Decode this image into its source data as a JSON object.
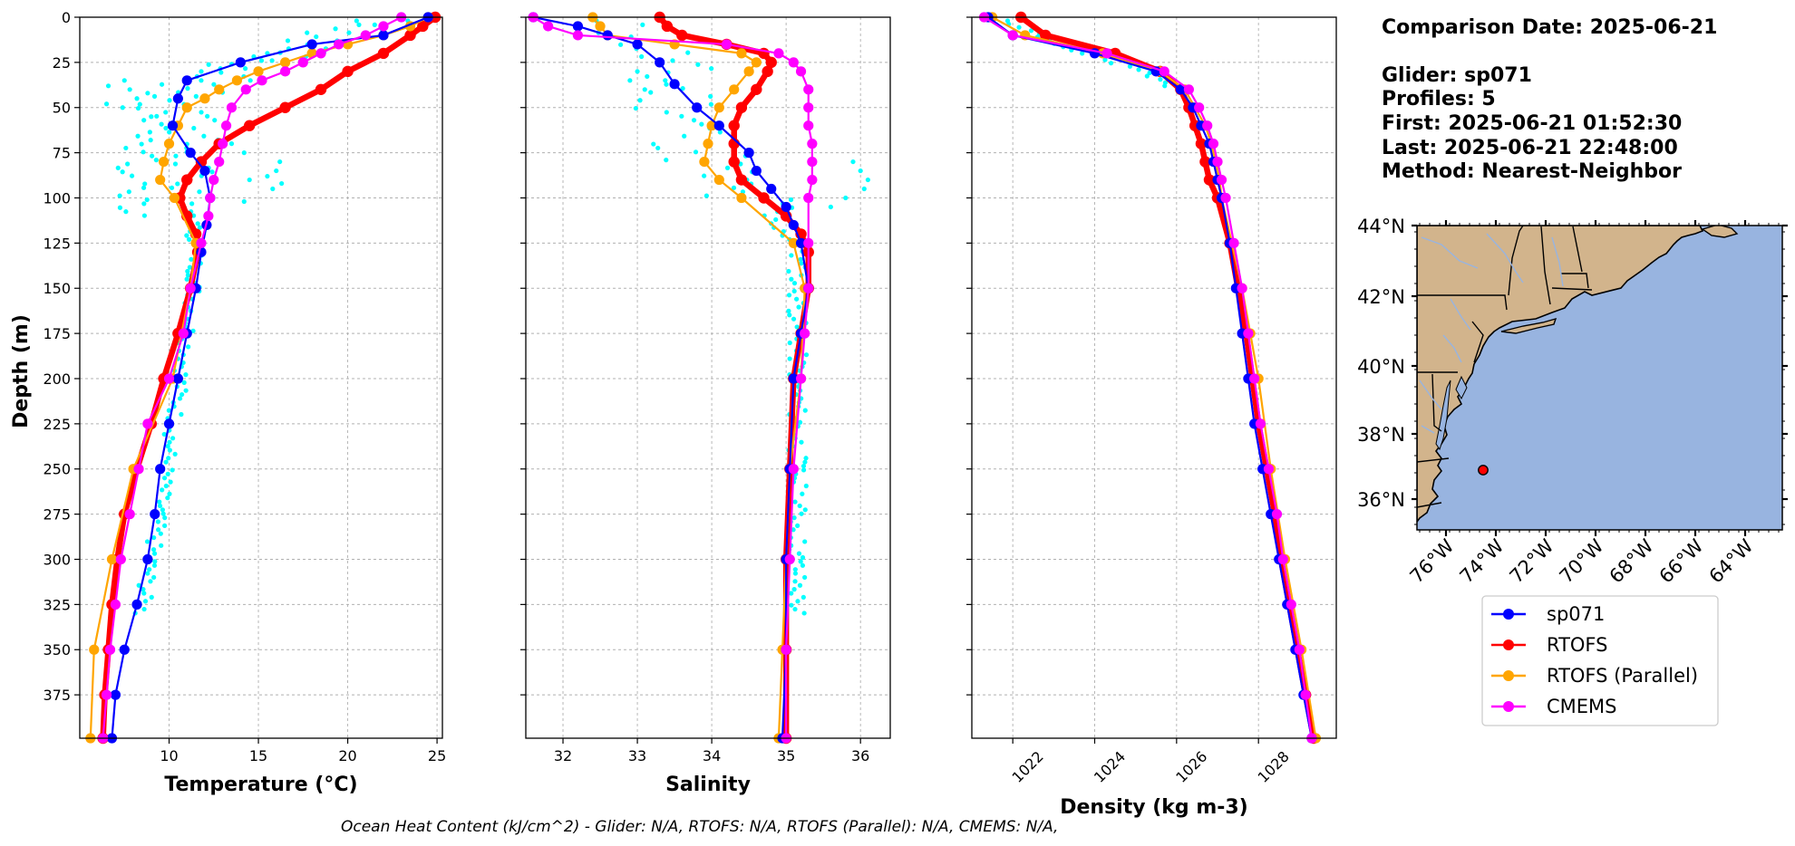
{
  "chart_data": [
    {
      "type": "line",
      "xlabel": "Temperature (°C)",
      "ylabel": "Depth (m)",
      "xlim": [
        5,
        25.3
      ],
      "ylim": [
        399,
        0
      ],
      "y_inverted": true,
      "grid": true,
      "xticks": [
        10,
        15,
        20,
        25
      ],
      "yticks": [
        0,
        25,
        50,
        75,
        100,
        125,
        150,
        175,
        200,
        225,
        250,
        275,
        300,
        325,
        350,
        375
      ],
      "series": [
        {
          "name": "sp071",
          "color": "#0000ff",
          "depth": [
            0,
            10,
            15,
            25,
            35,
            45,
            60,
            75,
            85,
            100,
            115,
            130,
            150,
            175,
            200,
            225,
            250,
            275,
            300,
            325,
            350,
            375,
            399
          ],
          "values": [
            24.5,
            22,
            18,
            14,
            11,
            10.5,
            10.2,
            11.2,
            12,
            12.3,
            12.1,
            11.8,
            11.5,
            11,
            10.5,
            10,
            9.5,
            9.2,
            8.8,
            8.2,
            7.5,
            7,
            6.8
          ]
        },
        {
          "name": "RTOFS",
          "color": "#ff0000",
          "depth": [
            0,
            5,
            10,
            20,
            30,
            40,
            50,
            60,
            70,
            80,
            90,
            100,
            110,
            120,
            130,
            150,
            175,
            200,
            225,
            250,
            275,
            300,
            325,
            350,
            375,
            399
          ],
          "values": [
            24.9,
            24.2,
            23.5,
            22,
            20,
            18.5,
            16.5,
            14.5,
            12.8,
            11.8,
            11,
            10.6,
            11,
            11.5,
            11.6,
            11.2,
            10.5,
            9.7,
            9,
            8.2,
            7.5,
            7.1,
            6.8,
            6.6,
            6.4,
            6.3
          ]
        },
        {
          "name": "RTOFS (Parallel)",
          "color": "#ffa500",
          "depth": [
            0,
            5,
            10,
            15,
            20,
            25,
            30,
            35,
            40,
            45,
            50,
            60,
            70,
            80,
            90,
            100,
            125,
            150,
            200,
            250,
            300,
            350,
            399
          ],
          "values": [
            24.5,
            23.5,
            22,
            20,
            18,
            16.5,
            15,
            13.8,
            12.8,
            12,
            11,
            10.5,
            10,
            9.7,
            9.5,
            10.3,
            11.5,
            11.2,
            10.2,
            8,
            6.8,
            5.8,
            5.6
          ]
        },
        {
          "name": "CMEMS",
          "color": "#ff00ff",
          "depth": [
            0,
            5,
            10,
            15,
            20,
            25,
            30,
            35,
            40,
            50,
            60,
            70,
            80,
            90,
            100,
            110,
            125,
            150,
            175,
            200,
            225,
            250,
            275,
            300,
            325,
            350,
            375,
            399
          ],
          "values": [
            23,
            22,
            21,
            19.5,
            18.5,
            17.5,
            16.5,
            15.2,
            14.3,
            13.5,
            13.2,
            13,
            12.8,
            12.5,
            12.3,
            12.2,
            11.8,
            11.2,
            10.8,
            10,
            8.8,
            8.3,
            7.8,
            7.3,
            7,
            6.7,
            6.5,
            6.3
          ]
        }
      ]
    },
    {
      "type": "line",
      "xlabel": "Salinity",
      "xlim": [
        31.5,
        36.4
      ],
      "ylim": [
        399,
        0
      ],
      "y_inverted": true,
      "grid": true,
      "xticks": [
        32,
        33,
        34,
        35,
        36
      ],
      "series": [
        {
          "name": "sp071",
          "color": "#0000ff",
          "depth": [
            0,
            5,
            10,
            15,
            25,
            37,
            50,
            60,
            75,
            85,
            95,
            105,
            115,
            125,
            150,
            175,
            200,
            250,
            300,
            350,
            399
          ],
          "values": [
            31.6,
            32.2,
            32.6,
            33,
            33.3,
            33.5,
            33.8,
            34.1,
            34.5,
            34.6,
            34.8,
            35,
            35.1,
            35.2,
            35.3,
            35.2,
            35.1,
            35.05,
            35.0,
            35.0,
            34.95
          ]
        },
        {
          "name": "RTOFS",
          "color": "#ff0000",
          "depth": [
            0,
            5,
            10,
            15,
            20,
            25,
            30,
            40,
            50,
            60,
            70,
            80,
            90,
            100,
            110,
            120,
            130,
            150,
            175,
            200,
            250,
            300,
            350,
            399
          ],
          "values": [
            33.3,
            33.4,
            33.6,
            34.2,
            34.7,
            34.8,
            34.75,
            34.6,
            34.4,
            34.3,
            34.3,
            34.3,
            34.4,
            34.7,
            35,
            35.2,
            35.3,
            35.3,
            35.2,
            35.1,
            35.05,
            35.0,
            35.0,
            35.0
          ]
        },
        {
          "name": "RTOFS (Parallel)",
          "color": "#ffa500",
          "depth": [
            0,
            5,
            10,
            15,
            20,
            25,
            30,
            40,
            50,
            60,
            70,
            80,
            90,
            100,
            125,
            150,
            200,
            250,
            300,
            350,
            399
          ],
          "values": [
            32.4,
            32.5,
            32.6,
            33.5,
            34.4,
            34.6,
            34.5,
            34.3,
            34.1,
            34.0,
            33.95,
            33.9,
            34.1,
            34.4,
            35.1,
            35.25,
            35.2,
            35.05,
            35.0,
            34.95,
            34.9
          ]
        },
        {
          "name": "CMEMS",
          "color": "#ff00ff",
          "depth": [
            0,
            5,
            10,
            15,
            20,
            25,
            30,
            40,
            50,
            60,
            70,
            80,
            90,
            100,
            125,
            150,
            175,
            200,
            250,
            300,
            350,
            399
          ],
          "values": [
            31.6,
            31.8,
            32.2,
            34.2,
            34.9,
            35.1,
            35.2,
            35.3,
            35.3,
            35.3,
            35.35,
            35.35,
            35.35,
            35.3,
            35.3,
            35.3,
            35.25,
            35.2,
            35.1,
            35.05,
            35.0,
            35.0
          ]
        }
      ]
    },
    {
      "type": "line",
      "xlabel": "Density (kg m-3)",
      "xlim": [
        1021,
        1029.9
      ],
      "ylim": [
        399,
        0
      ],
      "y_inverted": true,
      "grid": true,
      "xticks": [
        1022,
        1024,
        1026,
        1028
      ],
      "series": [
        {
          "name": "sp071",
          "color": "#0000ff",
          "depth": [
            0,
            10,
            20,
            30,
            40,
            50,
            60,
            70,
            80,
            90,
            100,
            125,
            150,
            175,
            200,
            225,
            250,
            275,
            300,
            325,
            350,
            375,
            399
          ],
          "values": [
            1021.4,
            1022,
            1024,
            1025.5,
            1026.1,
            1026.4,
            1026.6,
            1026.8,
            1026.9,
            1027.0,
            1027.1,
            1027.3,
            1027.45,
            1027.6,
            1027.75,
            1027.9,
            1028.1,
            1028.3,
            1028.5,
            1028.7,
            1028.9,
            1029.1,
            1029.3
          ]
        },
        {
          "name": "RTOFS",
          "color": "#ff0000",
          "depth": [
            0,
            10,
            20,
            30,
            40,
            50,
            60,
            70,
            80,
            90,
            100,
            125,
            150,
            175,
            200,
            225,
            250,
            275,
            300,
            325,
            350,
            375,
            399
          ],
          "values": [
            1022.2,
            1022.8,
            1024.5,
            1025.6,
            1026.1,
            1026.3,
            1026.45,
            1026.6,
            1026.7,
            1026.8,
            1027.0,
            1027.3,
            1027.5,
            1027.7,
            1027.85,
            1028.0,
            1028.2,
            1028.4,
            1028.55,
            1028.75,
            1028.95,
            1029.15,
            1029.35
          ]
        },
        {
          "name": "RTOFS (Parallel)",
          "color": "#ffa500",
          "depth": [
            0,
            10,
            20,
            30,
            40,
            50,
            60,
            70,
            80,
            90,
            100,
            125,
            150,
            175,
            200,
            250,
            300,
            350,
            399
          ],
          "values": [
            1021.5,
            1022.3,
            1024.2,
            1025.6,
            1026.2,
            1026.45,
            1026.7,
            1026.85,
            1026.95,
            1027.05,
            1027.1,
            1027.35,
            1027.6,
            1027.8,
            1028.0,
            1028.3,
            1028.65,
            1029.05,
            1029.4
          ]
        },
        {
          "name": "CMEMS",
          "color": "#ff00ff",
          "depth": [
            0,
            10,
            20,
            30,
            40,
            50,
            60,
            70,
            80,
            90,
            100,
            125,
            150,
            175,
            200,
            225,
            250,
            275,
            300,
            325,
            350,
            375,
            399
          ],
          "values": [
            1021.3,
            1022,
            1024.3,
            1025.7,
            1026.3,
            1026.55,
            1026.75,
            1026.9,
            1027.0,
            1027.1,
            1027.2,
            1027.4,
            1027.6,
            1027.75,
            1027.9,
            1028.05,
            1028.25,
            1028.45,
            1028.6,
            1028.8,
            1029.0,
            1029.15,
            1029.3
          ]
        }
      ]
    }
  ],
  "shared": {
    "ylabel": "Depth (m)"
  },
  "info": {
    "comparison": "Comparison Date: 2025-06-21",
    "glider": "Glider: sp071",
    "profiles": "Profiles: 5",
    "first": "First: 2025-06-21 01:52:30",
    "last": "Last: 2025-06-21 22:48:00",
    "method": "Nearest-Neighbor"
  },
  "map": {
    "lat_ticks": [
      "44°N",
      "42°N",
      "40°N",
      "38°N",
      "36°N"
    ],
    "lon_ticks": [
      "76°W",
      "74°W",
      "72°W",
      "70°W",
      "68°W",
      "66°W",
      "64°W"
    ],
    "land_color": "#d2b48c",
    "ocean_color": "#98b4e0",
    "glider_marker_color": "#ff0000"
  },
  "legend": [
    {
      "label": "sp071",
      "color": "#0000ff"
    },
    {
      "label": "RTOFS",
      "color": "#ff0000"
    },
    {
      "label": "RTOFS (Parallel)",
      "color": "#ffa500"
    },
    {
      "label": "CMEMS",
      "color": "#ff00ff"
    }
  ],
  "footer": "Ocean Heat Content (kJ/cm^2) - Glider: N/A,  RTOFS: N/A,  RTOFS (Parallel): N/A,  CMEMS: N/A,",
  "raw_obs_color": "#00ffff"
}
